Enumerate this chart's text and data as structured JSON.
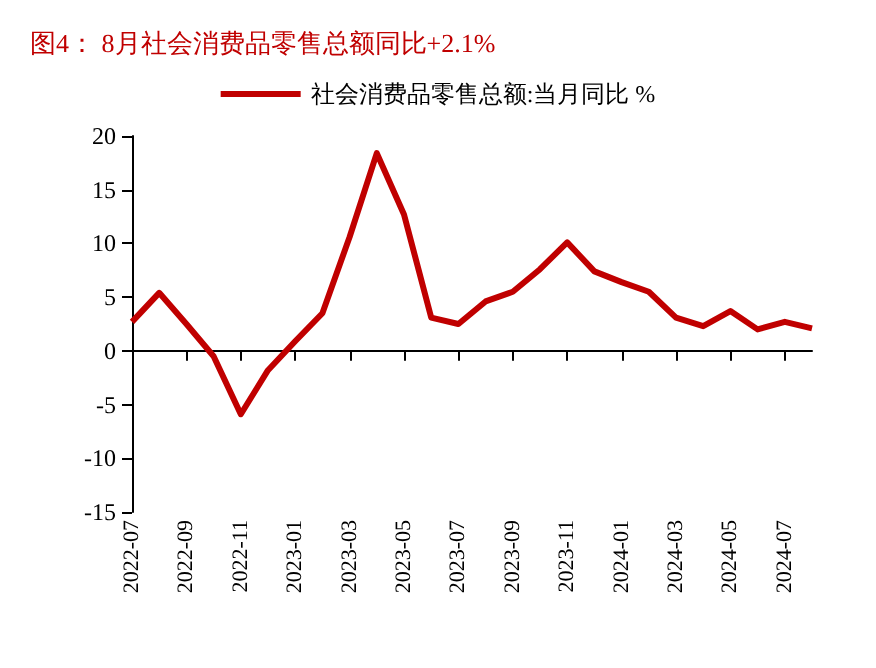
{
  "chart_data": {
    "type": "line",
    "title": "图4： 8月社会消费品零售总额同比+2.1%",
    "categories": [
      "2022-07",
      null,
      "2022-09",
      null,
      "2022-11",
      null,
      "2023-01",
      null,
      "2023-03",
      null,
      "2023-05",
      null,
      "2023-07",
      null,
      "2023-09",
      null,
      "2023-11",
      null,
      "2024-01",
      null,
      "2024-03",
      null,
      "2024-05",
      null,
      "2024-07",
      null
    ],
    "series": [
      {
        "name": "社会消费品零售总额:当月同比 %",
        "color": "#c00000",
        "values": [
          2.7,
          5.4,
          2.5,
          -0.5,
          -5.9,
          -1.8,
          0.9,
          3.5,
          10.6,
          18.4,
          12.7,
          3.1,
          2.5,
          4.6,
          5.5,
          7.6,
          10.1,
          7.4,
          6.4,
          5.5,
          3.1,
          2.3,
          3.7,
          2.0,
          2.7,
          2.1
        ]
      }
    ],
    "ylim": [
      -15,
      20
    ],
    "yticks": [
      -15,
      -10,
      -5,
      0,
      5,
      10,
      15,
      20
    ],
    "legend": "top",
    "marker": "none",
    "line_style": "solid"
  }
}
